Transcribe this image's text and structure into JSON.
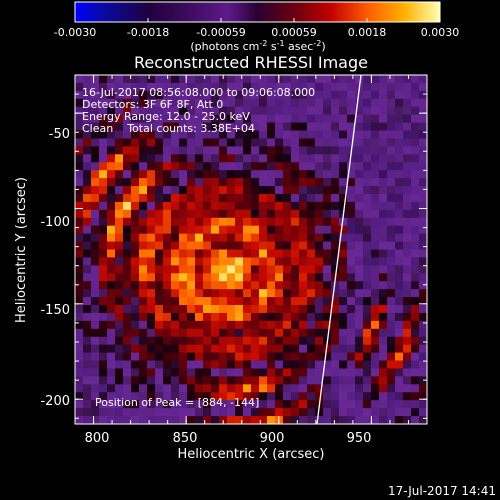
{
  "colorbar": {
    "ticks": [
      "-0.0030",
      "-0.0018",
      "-0.00059",
      "0.00059",
      "0.0018",
      "0.0030"
    ],
    "unit_prefix": "(photons cm",
    "unit_sup1": "-2",
    "unit_mid1": " s",
    "unit_sup2": "-1",
    "unit_mid2": " asec",
    "unit_sup3": "-2",
    "unit_suffix": ")"
  },
  "image": {
    "title": "Reconstructed RHESSI Image",
    "info": [
      "16-Jul-2017 08:56:08.000 to 09:06:08.000",
      "Detectors: 3F 6F 8F, Att 0",
      "Energy Range: 12.0 - 25.0 keV",
      "Clean    Total counts: 3.38E+04"
    ],
    "peak_label": "Position of Peak = [884, -144]"
  },
  "axes": {
    "xlabel": "Heliocentric X (arcsec)",
    "ylabel": "Heliocentric Y (arcsec)",
    "xticks": [
      "800",
      "850",
      "900",
      "950"
    ],
    "yticks": [
      "-50",
      "-100",
      "-150",
      "-200"
    ],
    "xlim": [
      790,
      980
    ],
    "ylim": [
      -213,
      -30
    ]
  },
  "footer": {
    "timestamp": "17-Jul-2017 14:41"
  },
  "colors": {
    "background": "#000000",
    "limb": "#ffffff"
  }
}
